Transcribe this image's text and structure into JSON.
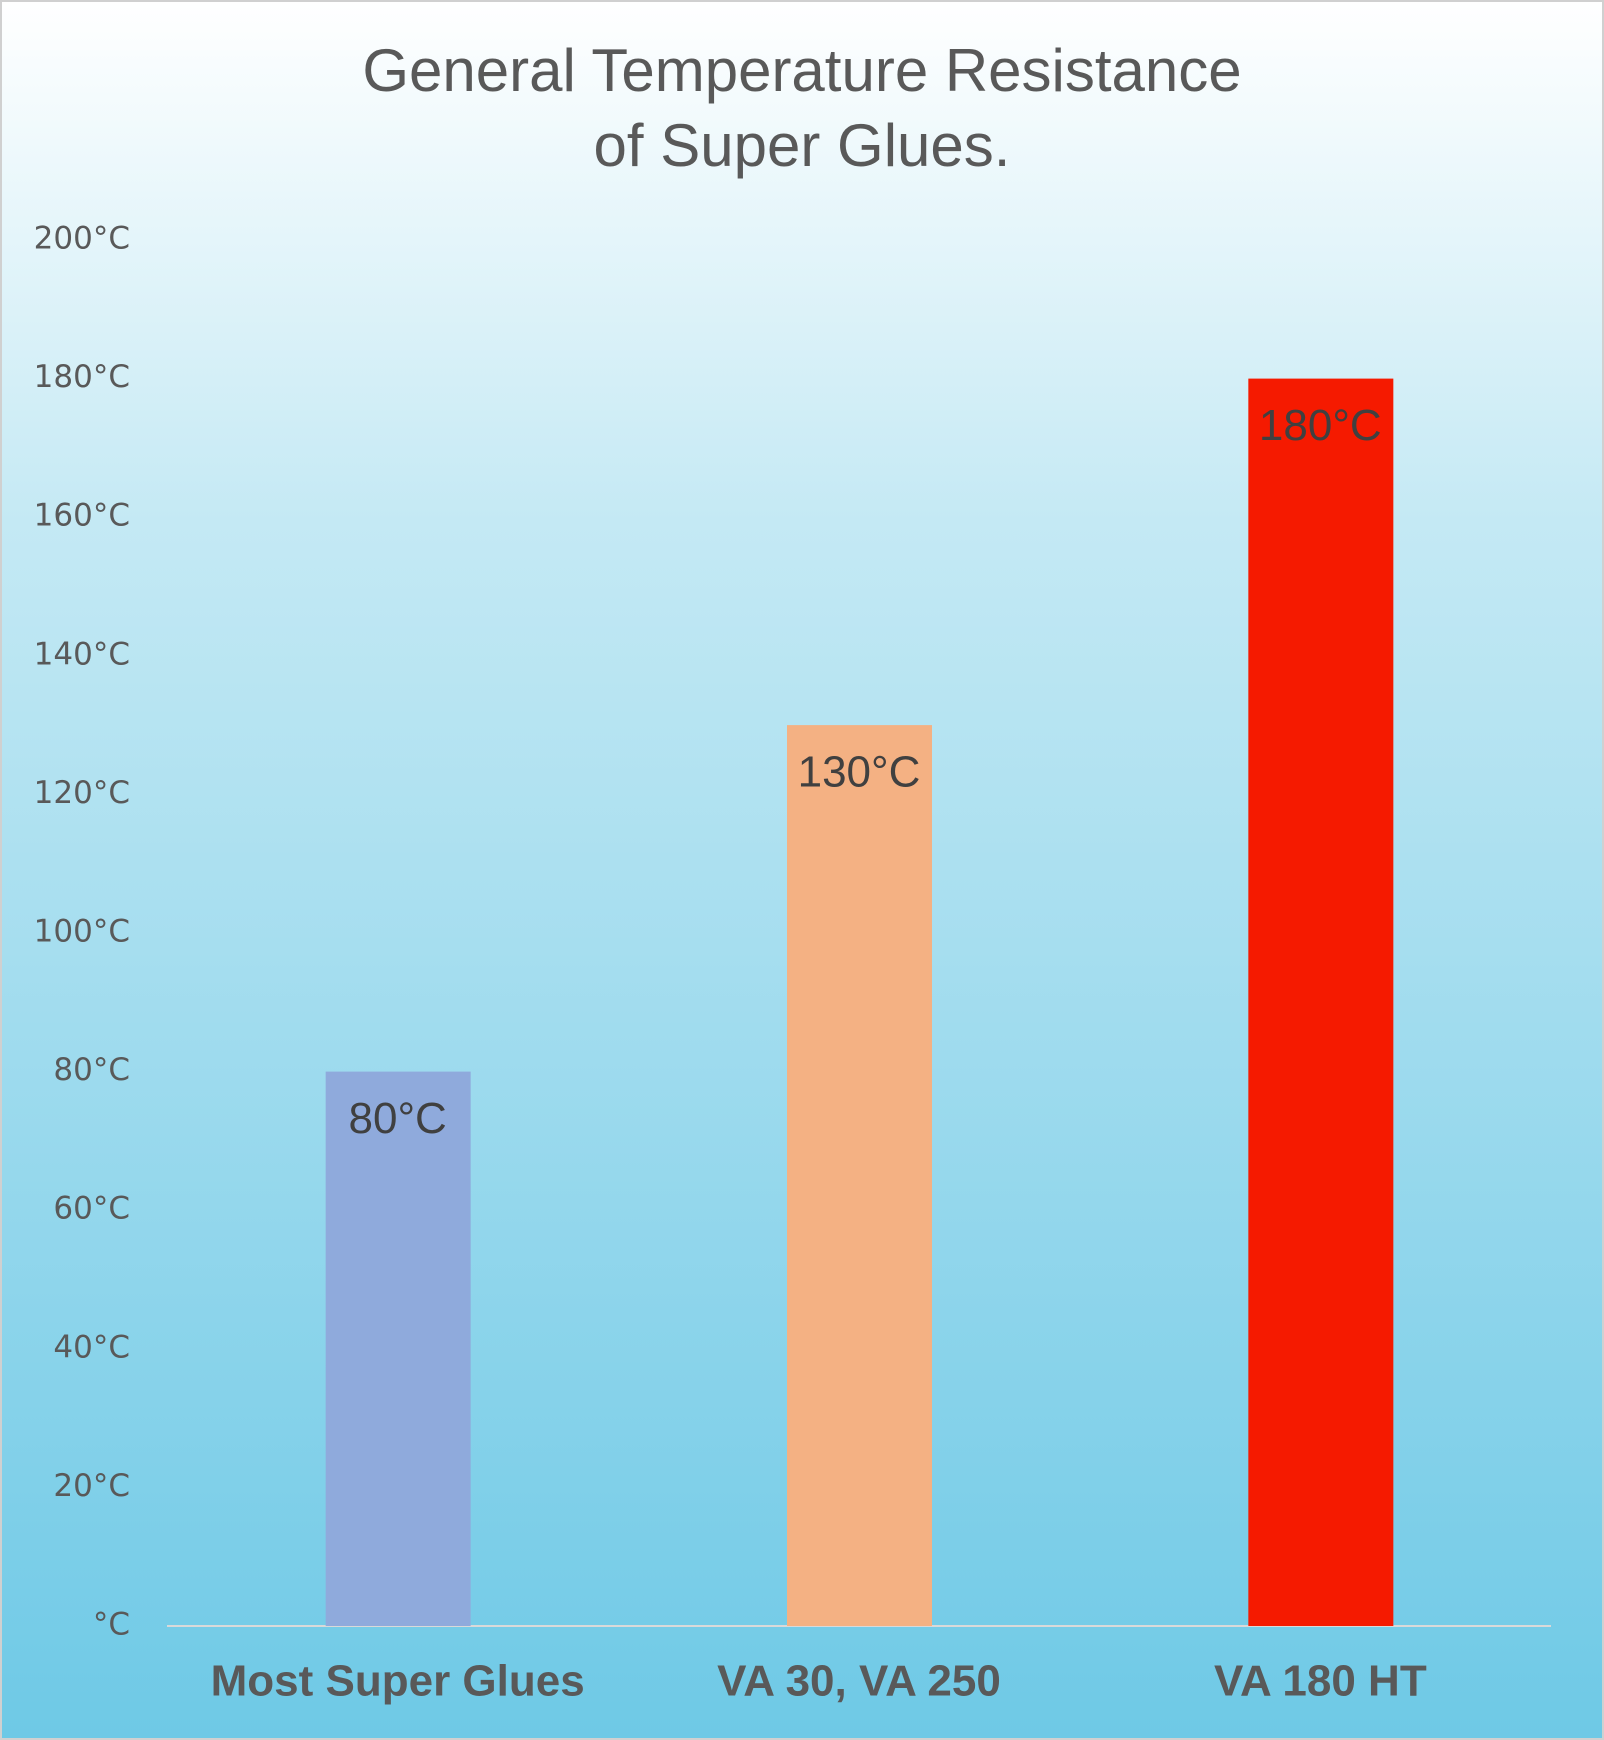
{
  "chart_data": {
    "type": "bar",
    "title": [
      "General Temperature Resistance",
      "of Super Glues."
    ],
    "categories": [
      "Most Super Glues",
      "VA 30, VA 250",
      "VA 180 HT"
    ],
    "values": [
      80,
      130,
      180
    ],
    "value_labels": [
      "80°C",
      "130°C",
      "180°C"
    ],
    "colors": [
      "#8faadc",
      "#f4b183",
      "#f51a00"
    ],
    "ylim": [
      0,
      200
    ],
    "yticks": [
      {
        "value": 0,
        "label": "°C"
      },
      {
        "value": 20,
        "label": "20°C"
      },
      {
        "value": 40,
        "label": "40°C"
      },
      {
        "value": 60,
        "label": "60°C"
      },
      {
        "value": 80,
        "label": "80°C"
      },
      {
        "value": 100,
        "label": "100°C"
      },
      {
        "value": 120,
        "label": "120°C"
      },
      {
        "value": 140,
        "label": "140°C"
      },
      {
        "value": 160,
        "label": "160°C"
      },
      {
        "value": 180,
        "label": "180°C"
      },
      {
        "value": 200,
        "label": "200°C"
      }
    ],
    "grid": false
  }
}
